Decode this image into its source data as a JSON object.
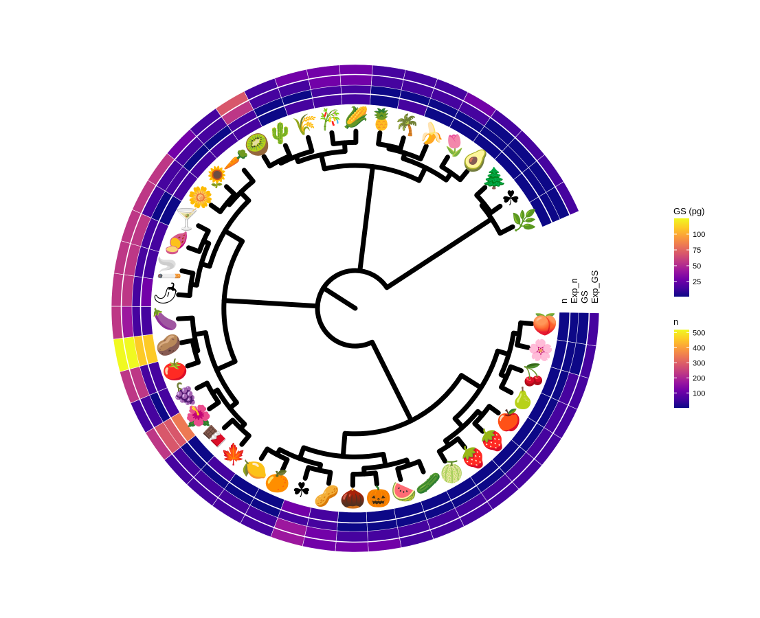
{
  "chart_data": {
    "type": "circular-phylogenetic-tree-heatmap",
    "title": "",
    "tips": [
      {
        "icon": "peach",
        "glyph": "🍑",
        "n": 12,
        "exp_n": 8,
        "gs": 5,
        "exp_gs": 10
      },
      {
        "icon": "cherry-blossom",
        "glyph": "🌸",
        "n": 10,
        "exp_n": 9,
        "gs": 6,
        "exp_gs": 12
      },
      {
        "icon": "cherries",
        "glyph": "🍒",
        "n": 14,
        "exp_n": 10,
        "gs": 8,
        "exp_gs": 14
      },
      {
        "icon": "pear",
        "glyph": "🍐",
        "n": 22,
        "exp_n": 14,
        "gs": 9,
        "exp_gs": 16
      },
      {
        "icon": "red-apple",
        "glyph": "🍎",
        "n": 28,
        "exp_n": 18,
        "gs": 12,
        "exp_gs": 18
      },
      {
        "icon": "raspberry",
        "glyph": "🍓",
        "n": 18,
        "exp_n": 12,
        "gs": 10,
        "exp_gs": 16
      },
      {
        "icon": "strawberry",
        "glyph": "🍓",
        "n": 20,
        "exp_n": 14,
        "gs": 10,
        "exp_gs": 14
      },
      {
        "icon": "melon",
        "glyph": "🍈",
        "n": 25,
        "exp_n": 20,
        "gs": 12,
        "exp_gs": 18
      },
      {
        "icon": "cucumber",
        "glyph": "🥒",
        "n": 20,
        "exp_n": 15,
        "gs": 11,
        "exp_gs": 16
      },
      {
        "icon": "watermelon",
        "glyph": "🍉",
        "n": 22,
        "exp_n": 18,
        "gs": 14,
        "exp_gs": 20
      },
      {
        "icon": "pumpkin",
        "glyph": "🎃",
        "n": 15,
        "exp_n": 12,
        "gs": 12,
        "exp_gs": 22
      },
      {
        "icon": "chestnut",
        "glyph": "🌰",
        "n": 8,
        "exp_n": 10,
        "gs": 20,
        "exp_gs": 24
      },
      {
        "icon": "peanut",
        "glyph": "🥜",
        "n": 60,
        "exp_n": 30,
        "gs": 30,
        "exp_gs": 34
      },
      {
        "icon": "clover",
        "glyph": "☘",
        "n": 90,
        "exp_n": 40,
        "gs": 35,
        "exp_gs": 38
      },
      {
        "icon": "orange",
        "glyph": "🍊",
        "n": 25,
        "exp_n": 18,
        "gs": 10,
        "exp_gs": 14
      },
      {
        "icon": "lemon",
        "glyph": "🍋",
        "n": 20,
        "exp_n": 15,
        "gs": 9,
        "exp_gs": 12
      },
      {
        "icon": "maple-leaf",
        "glyph": "🍁",
        "n": 30,
        "exp_n": 22,
        "gs": 14,
        "exp_gs": 18
      },
      {
        "icon": "chocolate-bar",
        "glyph": "🍫",
        "n": 15,
        "exp_n": 12,
        "gs": 8,
        "exp_gs": 12
      },
      {
        "icon": "hibiscus",
        "glyph": "🌺",
        "n": 320,
        "exp_n": 300,
        "gs": 65,
        "exp_gs": 55
      },
      {
        "icon": "grapes",
        "glyph": "🍇",
        "n": 30,
        "exp_n": 22,
        "gs": 12,
        "exp_gs": 16
      },
      {
        "icon": "tomato",
        "glyph": "🍅",
        "n": 80,
        "exp_n": 60,
        "gs": 50,
        "exp_gs": 60
      },
      {
        "icon": "potato",
        "glyph": "🥔",
        "n": 480,
        "exp_n": 490,
        "gs": 125,
        "exp_gs": 120
      },
      {
        "icon": "eggplant",
        "glyph": "🍆",
        "n": 40,
        "exp_n": 30,
        "gs": 45,
        "exp_gs": 55
      },
      {
        "icon": "hot-pepper",
        "glyph": "🌶",
        "n": 90,
        "exp_n": 70,
        "gs": 55,
        "exp_gs": 60
      },
      {
        "icon": "cigarette",
        "glyph": "🚬",
        "n": 60,
        "exp_n": 50,
        "gs": 55,
        "exp_gs": 60
      },
      {
        "icon": "sweet-potato",
        "glyph": "🍠",
        "n": 70,
        "exp_n": 60,
        "gs": 55,
        "exp_gs": 60
      },
      {
        "icon": "cocktail",
        "glyph": "🍸",
        "n": 20,
        "exp_n": 15,
        "gs": 10,
        "exp_gs": 58
      },
      {
        "icon": "blossom",
        "glyph": "🌼",
        "n": 60,
        "exp_n": 40,
        "gs": 18,
        "exp_gs": 55
      },
      {
        "icon": "sunflower",
        "glyph": "🌻",
        "n": 30,
        "exp_n": 20,
        "gs": 14,
        "exp_gs": 30
      },
      {
        "icon": "carrot",
        "glyph": "🥕",
        "n": 40,
        "exp_n": 25,
        "gs": 10,
        "exp_gs": 16
      },
      {
        "icon": "kiwi",
        "glyph": "🥝",
        "n": 60,
        "exp_n": 50,
        "gs": 60,
        "exp_gs": 64
      },
      {
        "icon": "cactus",
        "glyph": "🌵",
        "n": 15,
        "exp_n": 10,
        "gs": 8,
        "exp_gs": 14
      },
      {
        "icon": "wheat",
        "glyph": "🌾",
        "n": 30,
        "exp_n": 20,
        "gs": 14,
        "exp_gs": 22
      },
      {
        "icon": "bamboo",
        "glyph": "🎋",
        "n": 60,
        "exp_n": 40,
        "gs": 26,
        "exp_gs": 32
      },
      {
        "icon": "corn",
        "glyph": "🌽",
        "n": 55,
        "exp_n": 35,
        "gs": 24,
        "exp_gs": 30
      },
      {
        "icon": "pineapple",
        "glyph": "🍍",
        "n": 25,
        "exp_n": 15,
        "gs": 10,
        "exp_gs": 16
      },
      {
        "icon": "palm-tree",
        "glyph": "🌴",
        "n": 30,
        "exp_n": 20,
        "gs": 10,
        "exp_gs": 18
      },
      {
        "icon": "banana",
        "glyph": "🍌",
        "n": 20,
        "exp_n": 14,
        "gs": 8,
        "exp_gs": 14
      },
      {
        "icon": "tulip",
        "glyph": "🌷",
        "n": 14,
        "exp_n": 12,
        "gs": 18,
        "exp_gs": 24
      },
      {
        "icon": "avocado",
        "glyph": "🥑",
        "n": 10,
        "exp_n": 8,
        "gs": 4,
        "exp_gs": 8
      },
      {
        "icon": "evergreen-tree",
        "glyph": "🌲",
        "n": 8,
        "exp_n": 6,
        "gs": 6,
        "exp_gs": 10
      },
      {
        "icon": "shamrock",
        "glyph": "☘",
        "n": 6,
        "exp_n": 6,
        "gs": 4,
        "exp_gs": 8
      },
      {
        "icon": "herb",
        "glyph": "🌿",
        "n": 6,
        "exp_n": 5,
        "gs": 4,
        "exp_gs": 8
      }
    ],
    "ring_labels": [
      "n",
      "Exp_n",
      "GS",
      "Exp_GS"
    ],
    "legends": [
      {
        "title": "GS (pg)",
        "ticks": [
          100,
          75,
          50,
          25
        ],
        "range": [
          1,
          125
        ]
      },
      {
        "title": "n",
        "ticks": [
          500,
          400,
          300,
          200,
          100
        ],
        "range": [
          1,
          520
        ]
      }
    ],
    "colormap": "plasma",
    "colors": [
      "#0d0887",
      "#46039f",
      "#7201a8",
      "#9c179e",
      "#bd3786",
      "#d8576b",
      "#ed7953",
      "#fb9f3a",
      "#fdca26",
      "#f0f921"
    ]
  }
}
